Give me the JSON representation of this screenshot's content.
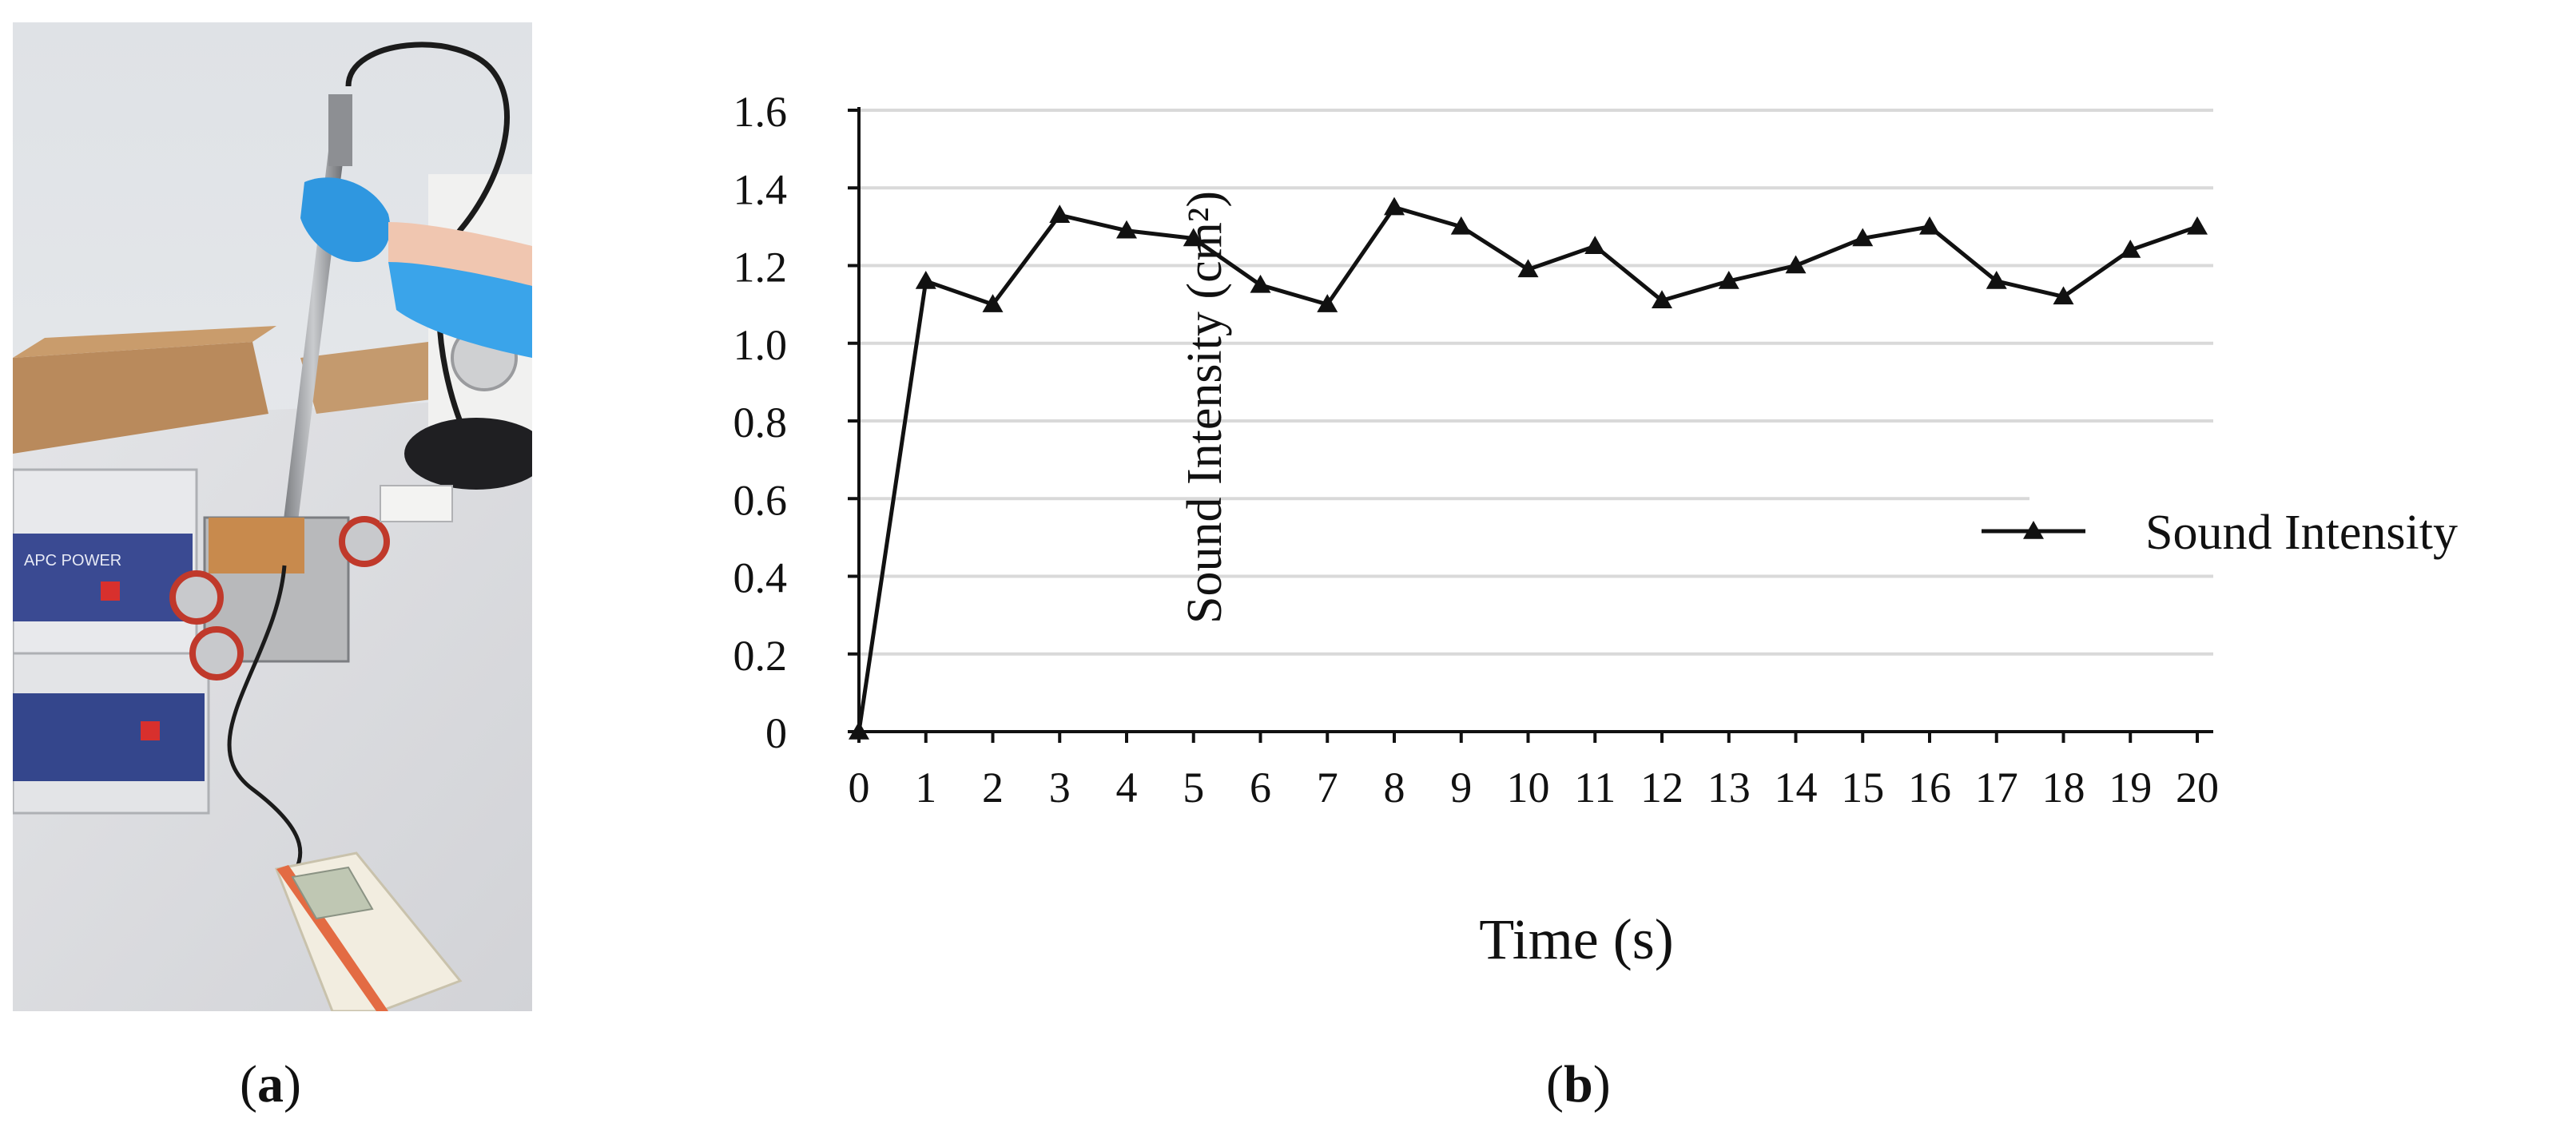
{
  "panels": {
    "a_open": "(",
    "a_letter": "a",
    "a_close": ")",
    "b_open": "(",
    "b_letter": "b",
    "b_close": ")"
  },
  "photo": {
    "device_label_top": "APC POWER",
    "colors": {
      "background_wall": "#e6e8ea",
      "table": "#dcdde0",
      "glove": "#3aa0e6",
      "meter_body": "#f2ede0",
      "meter_accent": "#e36b43",
      "generator_top": "#3a4a92"
    }
  },
  "chart_data": {
    "type": "line",
    "xlabel": "Time (s)",
    "ylabel": "Sound Intensity (cm²)",
    "x": [
      0,
      1,
      2,
      3,
      4,
      5,
      6,
      7,
      8,
      9,
      10,
      11,
      12,
      13,
      14,
      15,
      16,
      17,
      18,
      19,
      20
    ],
    "series": [
      {
        "name": "Sound Intensity",
        "marker": "triangle",
        "color": "#111111",
        "values": [
          0,
          1.16,
          1.1,
          1.33,
          1.29,
          1.27,
          1.15,
          1.1,
          1.35,
          1.3,
          1.19,
          1.25,
          1.11,
          1.16,
          1.2,
          1.27,
          1.3,
          1.16,
          1.12,
          1.24,
          1.3
        ]
      }
    ],
    "xlim": [
      0,
      20
    ],
    "ylim": [
      0,
      1.6
    ],
    "yticks": [
      0,
      0.2,
      0.4,
      0.6,
      0.8,
      1.0,
      1.2,
      1.4,
      1.6
    ],
    "ytick_labels": [
      "0",
      "0.2",
      "0.4",
      "0.6",
      "0.8",
      "1.0",
      "1.2",
      "1.4",
      "1.6"
    ],
    "xtick_labels": [
      "0",
      "1",
      "2",
      "3",
      "4",
      "5",
      "6",
      "7",
      "8",
      "9",
      "10",
      "11",
      "12",
      "13",
      "14",
      "15",
      "16",
      "17",
      "18",
      "19",
      "20"
    ],
    "grid": true,
    "legend_position": "right"
  }
}
